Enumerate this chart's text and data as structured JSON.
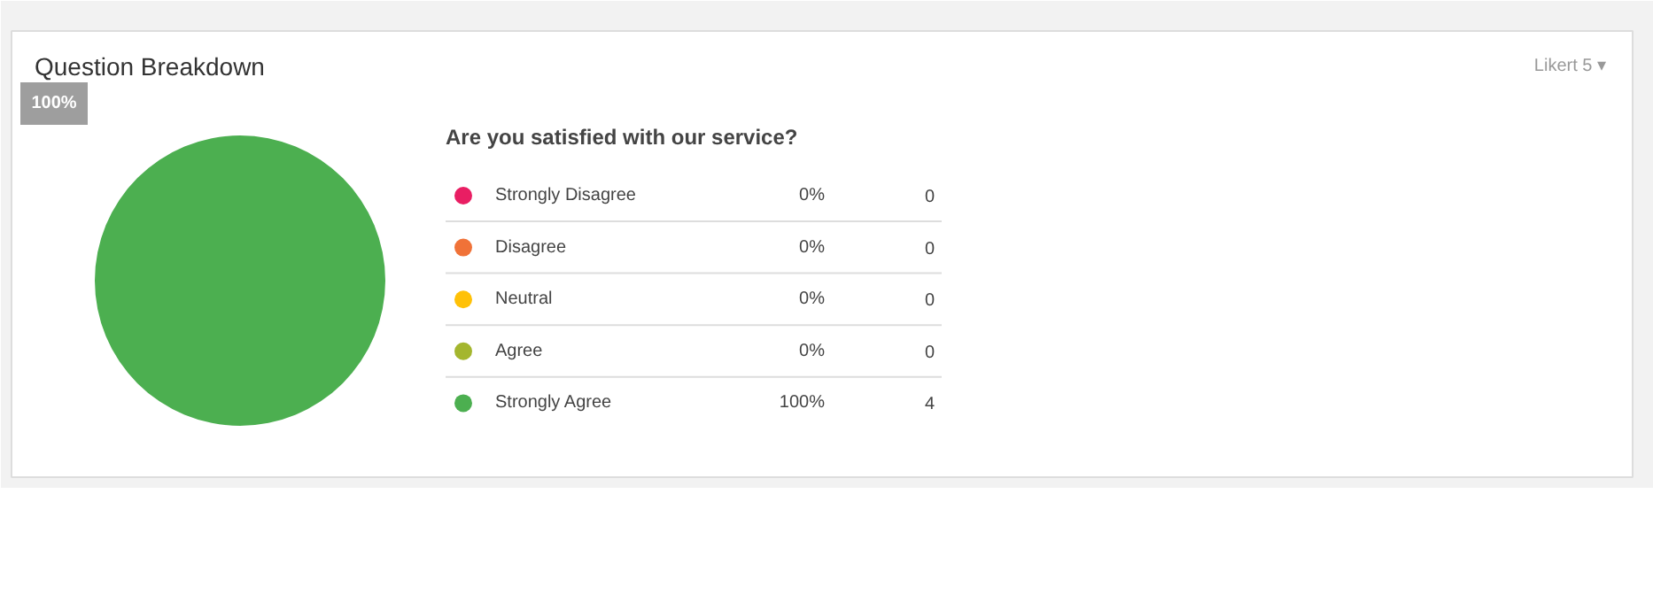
{
  "chart_data": {
    "type": "pie",
    "title": "Question Breakdown",
    "subtitle": "Are you satisfied with our service?",
    "categories": [
      "Strongly Disagree",
      "Disagree",
      "Neutral",
      "Agree",
      "Strongly Agree"
    ],
    "values": [
      0,
      0,
      0,
      0,
      100
    ],
    "colors": [
      "#e91e63",
      "#f07238",
      "#ffc107",
      "#a4b62e",
      "#4caf50"
    ],
    "value_labels": [
      "0%",
      "0%",
      "0%",
      "0%",
      "100%"
    ],
    "legend": "right",
    "annotations": [
      "Likert 5 ▾",
      {
        "text": "0",
        "x": "Strongly Disagree"
      },
      {
        "text": "0",
        "x": "Disagree"
      },
      {
        "text": "0",
        "x": "Neutral"
      },
      {
        "text": "0",
        "x": "Agree"
      },
      {
        "text": "4",
        "x": "Strongly Agree"
      }
    ]
  }
}
